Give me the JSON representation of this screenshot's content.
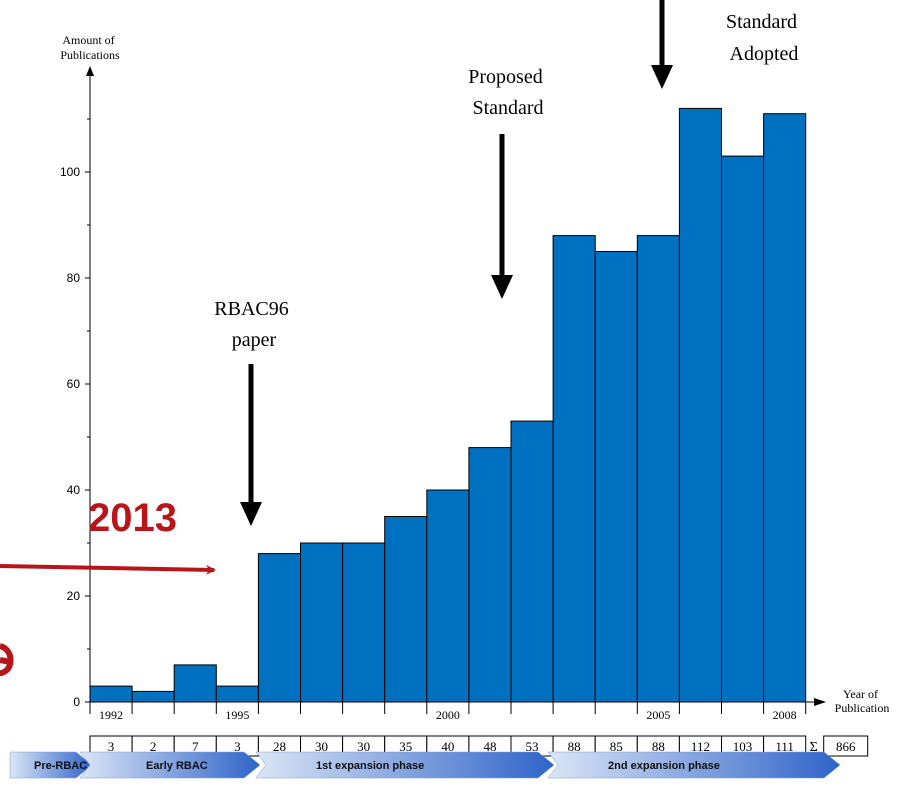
{
  "chart_data": {
    "type": "bar",
    "ylabel": "Amount of Publications",
    "xlabel": "Year of Publication",
    "ylim": [
      0,
      120
    ],
    "y_ticks": [
      "0",
      "20",
      "40",
      "60",
      "80",
      "100"
    ],
    "categories": [
      "1992",
      "1993",
      "1994",
      "1995",
      "1996",
      "1997",
      "1998",
      "1999",
      "2000",
      "2001",
      "2002",
      "2003",
      "2004",
      "2005",
      "2006",
      "2007",
      "2008"
    ],
    "x_tick_labels": [
      "1992",
      "1995",
      "2000",
      "2005",
      "2008"
    ],
    "values": [
      3,
      2,
      7,
      3,
      28,
      30,
      30,
      35,
      40,
      48,
      53,
      88,
      85,
      88,
      112,
      103,
      111
    ],
    "value_row": [
      "3",
      "2",
      "7",
      "3",
      "28",
      "30",
      "30",
      "35",
      "40",
      "48",
      "53",
      "88",
      "85",
      "88",
      "112",
      "103",
      "111"
    ],
    "sum_symbol": "Σ",
    "total": "866",
    "bar_color": "#0070C0",
    "annotations": [
      {
        "line1": "RBAC96",
        "line2": "paper"
      },
      {
        "line1": "Proposed",
        "line2": "Standard"
      },
      {
        "line1": "Standard",
        "line2": "Adopted"
      }
    ],
    "overlay_label": "2013",
    "overlay_color": "#B8151B",
    "phases": [
      "Pre-RBAC",
      "Early RBAC",
      "1st expansion phase",
      "2nd expansion phase"
    ]
  }
}
